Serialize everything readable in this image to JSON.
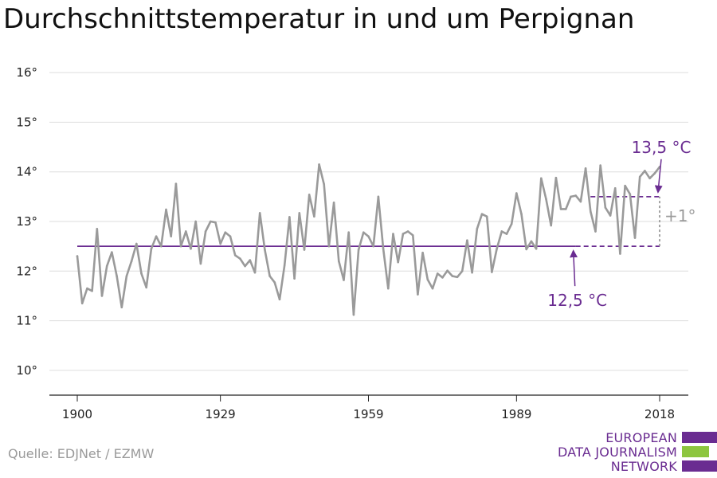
{
  "title": "Durchschnittstemperatur in und um Perpignan",
  "source": "Quelle: EDJNet / EZMW",
  "logo": {
    "lines": [
      "EUROPEAN",
      "DATA JOURNALISM",
      "NETWORK"
    ],
    "colors": [
      "#6a2c91",
      "#8dc63f",
      "#6a2c91"
    ]
  },
  "colors": {
    "series": "#9a9a9a",
    "baseline": "#6a2c91",
    "annotation": "#6a2c91",
    "delta": "#9a9a9a",
    "grid": "#dddddd",
    "axis": "#222222"
  },
  "chart_data": {
    "type": "line",
    "title": "Durchschnittstemperatur in und um Perpignan",
    "xlabel": "",
    "ylabel": "",
    "xlim": [
      1900,
      2018
    ],
    "ylim": [
      9.5,
      16.5
    ],
    "x_ticks": [
      1900,
      1929,
      1959,
      1989,
      2018
    ],
    "x_tick_labels": [
      "1900",
      "1929",
      "1959",
      "1989",
      "2018"
    ],
    "y_ticks": [
      10,
      11,
      12,
      13,
      14,
      15,
      16
    ],
    "y_tick_labels": [
      "10°",
      "11°",
      "12°",
      "13°",
      "14°",
      "15°",
      "16°"
    ],
    "grid": true,
    "series": [
      {
        "x": [
          1900,
          1901,
          1902,
          1903,
          1904,
          1905,
          1906,
          1907,
          1908,
          1909,
          1910,
          1911,
          1912,
          1913,
          1914,
          1915,
          1916,
          1917,
          1918,
          1919,
          1920,
          1921,
          1922,
          1923,
          1924,
          1925,
          1926,
          1927,
          1928,
          1929,
          1930,
          1931,
          1932,
          1933,
          1934,
          1935,
          1936,
          1937,
          1938,
          1939,
          1940,
          1941,
          1942,
          1943,
          1944,
          1945,
          1946,
          1947,
          1948,
          1949,
          1950,
          1951,
          1952,
          1953,
          1954,
          1955,
          1956,
          1957,
          1958,
          1959,
          1960,
          1961,
          1962,
          1963,
          1964,
          1965,
          1966,
          1967,
          1968,
          1969,
          1970,
          1971,
          1972,
          1973,
          1974,
          1975,
          1976,
          1977,
          1978,
          1979,
          1980,
          1981,
          1982,
          1983,
          1984,
          1985,
          1986,
          1987,
          1988,
          1989,
          1990,
          1991,
          1992,
          1993,
          1994,
          1995,
          1996,
          1997,
          1998,
          1999,
          2000,
          2001,
          2002,
          2003,
          2004,
          2005,
          2006,
          2007,
          2008,
          2009,
          2010,
          2011,
          2012,
          2013,
          2014,
          2015,
          2016,
          2017,
          2018
        ],
        "values": [
          12.3,
          11.35,
          11.65,
          11.6,
          12.85,
          11.5,
          12.1,
          12.38,
          11.9,
          11.27,
          11.9,
          12.2,
          12.55,
          11.95,
          11.67,
          12.45,
          12.7,
          12.5,
          13.24,
          12.7,
          13.76,
          12.5,
          12.8,
          12.45,
          13.0,
          12.15,
          12.8,
          13.0,
          12.98,
          12.55,
          12.78,
          12.7,
          12.32,
          12.25,
          12.1,
          12.22,
          11.97,
          13.17,
          12.43,
          11.9,
          11.77,
          11.43,
          12.12,
          13.09,
          11.85,
          13.17,
          12.43,
          13.54,
          13.1,
          14.15,
          13.75,
          12.5,
          13.38,
          12.2,
          11.82,
          12.78,
          11.12,
          12.43,
          12.78,
          12.7,
          12.5,
          13.5,
          12.45,
          11.65,
          12.75,
          12.18,
          12.75,
          12.8,
          12.72,
          11.53,
          12.37,
          11.83,
          11.65,
          11.95,
          11.87,
          12.01,
          11.9,
          11.88,
          12.0,
          12.62,
          11.97,
          12.85,
          13.15,
          13.1,
          11.98,
          12.45,
          12.8,
          12.75,
          12.95,
          13.57,
          13.15,
          12.44,
          12.6,
          12.45,
          13.87,
          13.45,
          12.92,
          13.88,
          13.25,
          13.25,
          13.5,
          13.52,
          13.4,
          14.07,
          13.2,
          12.8,
          14.13,
          13.28,
          13.12,
          13.67,
          12.35,
          13.72,
          13.55,
          12.67,
          13.9,
          14.02,
          13.87,
          13.97,
          14.1
        ]
      }
    ],
    "reference_lines": [
      {
        "label": "12,5 °C",
        "value": 12.5,
        "from": 1900,
        "to": 2001,
        "projected_to": 2018
      },
      {
        "label": "13,5 °C",
        "value": 13.5,
        "from": 2004,
        "to": 2018
      }
    ],
    "annotations": [
      {
        "text": "12,5 °C",
        "x": 2001,
        "y": 12.5
      },
      {
        "text": "13,5 °C",
        "x": 2018,
        "y": 13.5
      },
      {
        "text": "+1°",
        "x": 2018,
        "y": 13.0
      }
    ]
  }
}
